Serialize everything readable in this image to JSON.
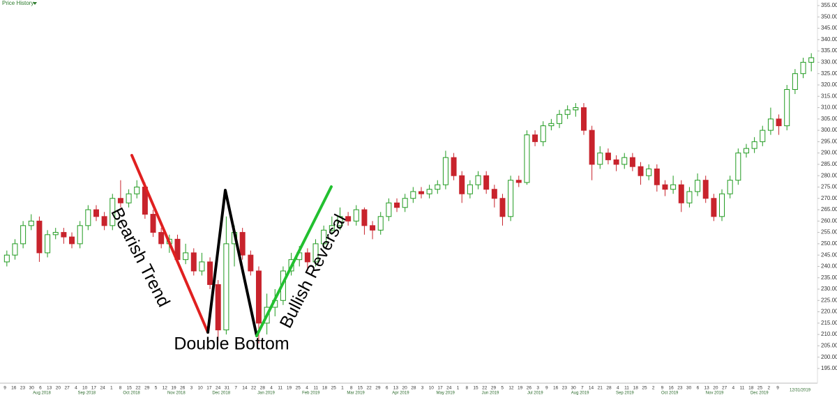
{
  "chart_data": {
    "type": "candlestick",
    "title": "Price History",
    "annotations": [
      "Bearish Trend",
      "Double Bottom",
      "Bullish Reversal"
    ],
    "ylim": [
      190,
      357
    ],
    "yticks": [
      {
        "value": 195,
        "label": "195.00"
      },
      {
        "value": 200,
        "label": "200.00"
      },
      {
        "value": 205,
        "label": "205.00"
      },
      {
        "value": 210,
        "label": "210.00"
      },
      {
        "value": 215,
        "label": "215.00"
      },
      {
        "value": 220,
        "label": "220.00"
      },
      {
        "value": 225,
        "label": "225.00"
      },
      {
        "value": 230,
        "label": "230.00"
      },
      {
        "value": 235,
        "label": "235.00"
      },
      {
        "value": 240,
        "label": "240.00"
      },
      {
        "value": 245,
        "label": "245.00"
      },
      {
        "value": 250,
        "label": "250.00"
      },
      {
        "value": 255,
        "label": "255.00"
      },
      {
        "value": 260,
        "label": "260.00"
      },
      {
        "value": 265,
        "label": "265.00"
      },
      {
        "value": 270,
        "label": "270.00"
      },
      {
        "value": 275,
        "label": "275.00"
      },
      {
        "value": 280,
        "label": "280.00"
      },
      {
        "value": 285,
        "label": "285.00"
      },
      {
        "value": 290,
        "label": "290.00"
      },
      {
        "value": 295,
        "label": "295.00"
      },
      {
        "value": 300,
        "label": "300.00"
      },
      {
        "value": 305,
        "label": "305.00"
      },
      {
        "value": 310,
        "label": "310.00"
      },
      {
        "value": 315,
        "label": "315.00"
      },
      {
        "value": 320,
        "label": "320.00"
      },
      {
        "value": 325,
        "label": "325.00"
      },
      {
        "value": 330,
        "label": "330.00"
      },
      {
        "value": 335,
        "label": "335.00"
      },
      {
        "value": 340,
        "label": "340.00"
      },
      {
        "value": 345,
        "label": "345.00"
      },
      {
        "value": 350,
        "label": "350.00"
      },
      {
        "value": 355,
        "label": "355.00"
      }
    ],
    "day_labels": [
      "9",
      "16",
      "23",
      "30",
      "6",
      "13",
      "20",
      "27",
      "4",
      "10",
      "17",
      "24",
      "1",
      "8",
      "15",
      "22",
      "29",
      "5",
      "12",
      "19",
      "26",
      "3",
      "10",
      "17",
      "24",
      "31",
      "7",
      "14",
      "22",
      "28",
      "4",
      "11",
      "19",
      "25",
      "4",
      "11",
      "18",
      "25",
      "1",
      "8",
      "15",
      "22",
      "29",
      "6",
      "13",
      "20",
      "28",
      "3",
      "10",
      "17",
      "24",
      "1",
      "8",
      "15",
      "22",
      "29",
      "5",
      "12",
      "19",
      "26",
      "3",
      "9",
      "16",
      "23",
      "30",
      "7",
      "14",
      "21",
      "28",
      "4",
      "11",
      "18",
      "25",
      "2",
      "9",
      "16",
      "23",
      "30",
      "6",
      "13",
      "20",
      "27",
      "4",
      "11",
      "18",
      "25",
      "2",
      "9"
    ],
    "month_labels": [
      "Aug 2018",
      "Sep 2018",
      "Oct 2018",
      "Nov 2018",
      "Dec 2018",
      "Jan 2019",
      "Feb 2019",
      "Mar 2019",
      "Apr 2019",
      "May 2019",
      "Jun 2019",
      "Jul 2019",
      "Aug 2019",
      "Sep 2019",
      "Oct 2019",
      "Nov 2019",
      "Dec 2019"
    ],
    "end_date_label": "12/31/2019",
    "up_color": "#1f9a1f",
    "down_color": "#c8232c",
    "ohlc": [
      [
        242,
        247,
        240,
        245
      ],
      [
        245,
        252,
        243,
        250
      ],
      [
        250,
        260,
        248,
        258
      ],
      [
        258,
        263,
        256,
        260
      ],
      [
        260,
        262,
        242,
        246
      ],
      [
        246,
        256,
        244,
        254
      ],
      [
        254,
        257,
        252,
        255
      ],
      [
        255,
        257,
        250,
        253
      ],
      [
        253,
        255,
        248,
        250
      ],
      [
        250,
        260,
        248,
        258
      ],
      [
        258,
        267,
        256,
        265
      ],
      [
        265,
        267,
        260,
        262
      ],
      [
        262,
        264,
        256,
        258
      ],
      [
        258,
        272,
        256,
        270
      ],
      [
        270,
        278,
        266,
        268
      ],
      [
        268,
        274,
        266,
        272
      ],
      [
        272,
        278,
        270,
        275
      ],
      [
        275,
        277,
        261,
        263
      ],
      [
        263,
        265,
        253,
        255
      ],
      [
        255,
        257,
        248,
        250
      ],
      [
        250,
        254,
        246,
        252
      ],
      [
        252,
        254,
        241,
        243
      ],
      [
        243,
        250,
        241,
        246
      ],
      [
        246,
        248,
        236,
        238
      ],
      [
        238,
        246,
        236,
        242
      ],
      [
        242,
        244,
        230,
        232
      ],
      [
        232,
        234,
        207,
        212
      ],
      [
        212,
        262,
        210,
        250
      ],
      [
        250,
        258,
        240,
        255
      ],
      [
        255,
        257,
        243,
        245
      ],
      [
        245,
        247,
        236,
        238
      ],
      [
        238,
        240,
        206,
        215
      ],
      [
        215,
        228,
        210,
        222
      ],
      [
        222,
        230,
        218,
        225
      ],
      [
        225,
        240,
        223,
        238
      ],
      [
        238,
        246,
        236,
        243
      ],
      [
        243,
        249,
        240,
        246
      ],
      [
        246,
        248,
        238,
        242
      ],
      [
        242,
        252,
        240,
        250
      ],
      [
        250,
        258,
        248,
        256
      ],
      [
        256,
        262,
        254,
        258
      ],
      [
        258,
        266,
        256,
        262
      ],
      [
        262,
        264,
        258,
        260
      ],
      [
        260,
        267,
        258,
        265
      ],
      [
        265,
        266,
        254,
        258
      ],
      [
        258,
        260,
        252,
        256
      ],
      [
        256,
        264,
        254,
        262
      ],
      [
        262,
        270,
        260,
        268
      ],
      [
        268,
        270,
        264,
        266
      ],
      [
        266,
        272,
        264,
        270
      ],
      [
        270,
        275,
        268,
        273
      ],
      [
        273,
        275,
        270,
        272
      ],
      [
        272,
        276,
        270,
        274
      ],
      [
        274,
        278,
        272,
        276
      ],
      [
        276,
        291,
        274,
        288
      ],
      [
        288,
        290,
        278,
        280
      ],
      [
        280,
        282,
        268,
        272
      ],
      [
        272,
        278,
        270,
        276
      ],
      [
        276,
        282,
        274,
        280
      ],
      [
        280,
        282,
        272,
        274
      ],
      [
        274,
        276,
        266,
        270
      ],
      [
        270,
        272,
        258,
        262
      ],
      [
        262,
        280,
        260,
        278
      ],
      [
        278,
        280,
        275,
        277
      ],
      [
        277,
        300,
        276,
        298
      ],
      [
        298,
        300,
        293,
        295
      ],
      [
        295,
        304,
        293,
        302
      ],
      [
        302,
        305,
        300,
        303
      ],
      [
        303,
        309,
        301,
        307
      ],
      [
        307,
        311,
        305,
        309
      ],
      [
        309,
        312,
        306,
        310
      ],
      [
        310,
        312,
        298,
        300
      ],
      [
        300,
        302,
        278,
        285
      ],
      [
        285,
        293,
        283,
        290
      ],
      [
        290,
        292,
        285,
        287
      ],
      [
        287,
        289,
        282,
        285
      ],
      [
        285,
        290,
        283,
        288
      ],
      [
        288,
        290,
        282,
        284
      ],
      [
        284,
        286,
        276,
        280
      ],
      [
        280,
        285,
        278,
        283
      ],
      [
        283,
        285,
        273,
        276
      ],
      [
        276,
        278,
        271,
        274
      ],
      [
        274,
        280,
        272,
        276
      ],
      [
        276,
        278,
        264,
        268
      ],
      [
        268,
        275,
        266,
        273
      ],
      [
        273,
        281,
        271,
        278
      ],
      [
        278,
        280,
        268,
        270
      ],
      [
        270,
        272,
        260,
        262
      ],
      [
        262,
        274,
        260,
        272
      ],
      [
        272,
        280,
        270,
        278
      ],
      [
        278,
        292,
        276,
        290
      ],
      [
        290,
        294,
        288,
        292
      ],
      [
        292,
        297,
        290,
        295
      ],
      [
        295,
        302,
        293,
        300
      ],
      [
        300,
        310,
        298,
        305
      ],
      [
        305,
        307,
        298,
        302
      ],
      [
        302,
        320,
        300,
        318
      ],
      [
        318,
        327,
        316,
        325
      ],
      [
        325,
        332,
        323,
        330
      ],
      [
        330,
        334,
        326,
        332
      ]
    ]
  }
}
